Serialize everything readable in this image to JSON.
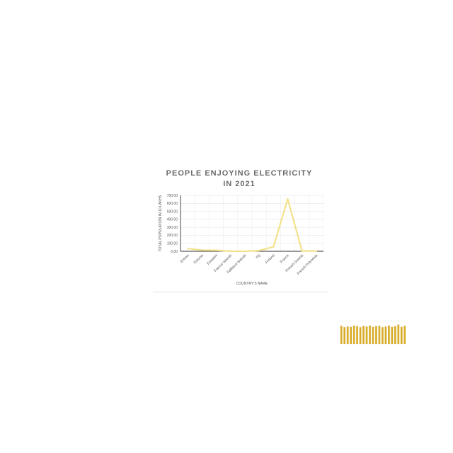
{
  "chart_data": [
    {
      "type": "line",
      "title_lines": [
        "PEOPLE ENJOYING ELECTRICITY",
        "IN 2021"
      ],
      "xlabel": "COUNTRY'S NAME",
      "ylabel": "TOTAL POPULATION IN 10 LAKHS",
      "categories": [
        "Eritrea",
        "Estonia",
        "Eswatini",
        "Faeroe Islands",
        "Falkland Islands",
        "Fiji",
        "Finland",
        "France",
        "French Guiana",
        "French Polynesia"
      ],
      "values": [
        35,
        14,
        12,
        1,
        0,
        9,
        55,
        655,
        3,
        3
      ],
      "ylim": [
        0,
        700
      ],
      "yticks": [
        "0.00",
        "100.00",
        "200.00",
        "300.00",
        "400.00",
        "500.00",
        "600.00",
        "700.00"
      ],
      "grid": true,
      "line_color": "#f3e28c"
    },
    {
      "type": "bar",
      "values": [
        56,
        52,
        54,
        53,
        57,
        55,
        52,
        56,
        54,
        57,
        53,
        55,
        56,
        52,
        54,
        57,
        53,
        55,
        60,
        53,
        56
      ],
      "ylim": [
        0,
        70
      ],
      "bar_color": "#d8ad2a"
    }
  ]
}
